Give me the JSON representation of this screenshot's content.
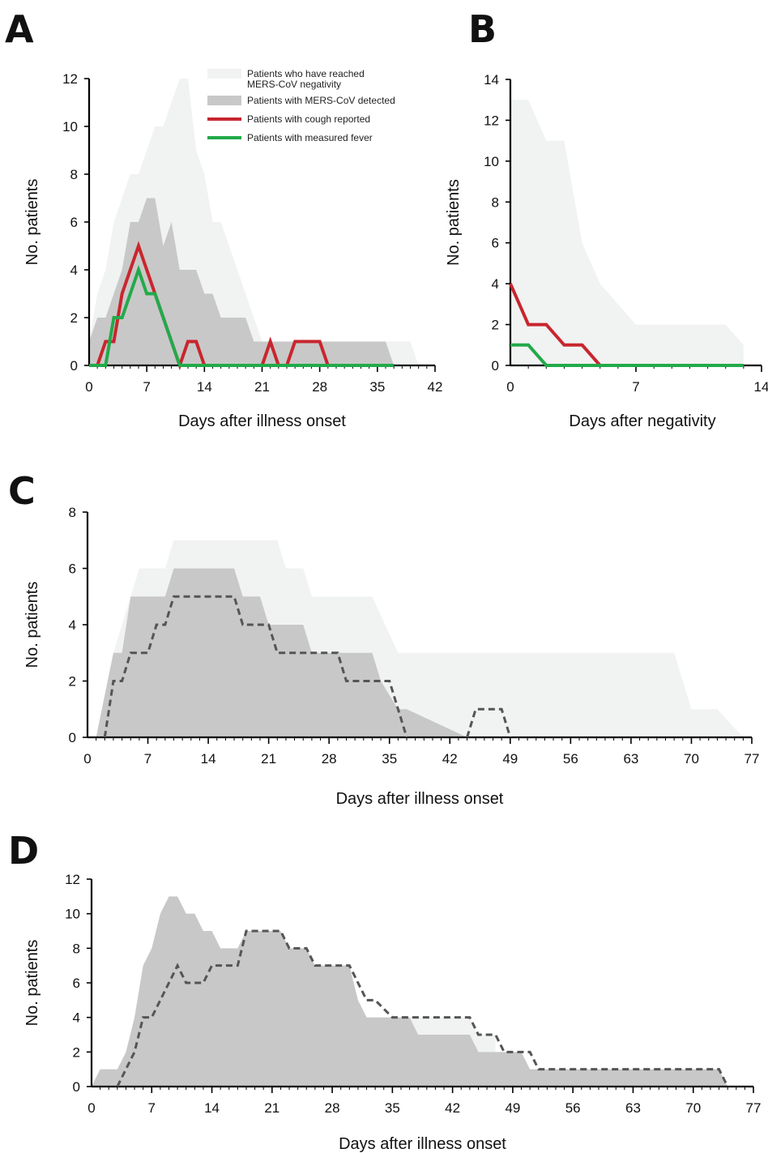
{
  "figure": {
    "panels": [
      "A",
      "B",
      "C",
      "D"
    ]
  },
  "legend": {
    "items": [
      {
        "kind": "area",
        "color": "#f1f2f2",
        "label_lines": [
          "Patients who have reached",
          "MERS-CoV negativity"
        ]
      },
      {
        "kind": "area",
        "color": "#c8c8c8",
        "label_lines": [
          "Patients with MERS-CoV detected"
        ]
      },
      {
        "kind": "line",
        "color": "#c8262e",
        "label_lines": [
          "Patients with cough reported"
        ]
      },
      {
        "kind": "line",
        "color": "#22aa4a",
        "label_lines": [
          "Patients with measured fever"
        ]
      }
    ]
  },
  "colors": {
    "negativity_area": "#f1f2f2",
    "detected_area": "#c8c8c8",
    "cough_line": "#c8262e",
    "fever_line": "#22aa4a",
    "dashed_line": "#555555",
    "axis": "#000000"
  },
  "chart_data": [
    {
      "panel": "A",
      "type": "area",
      "xlabel": "Days after illness onset",
      "ylabel": "No. patients",
      "xlim": [
        0,
        42
      ],
      "ylim": [
        0,
        12
      ],
      "xticks": [
        0,
        7,
        14,
        21,
        28,
        35,
        42
      ],
      "yticks": [
        0,
        2,
        4,
        6,
        8,
        10,
        12
      ],
      "series": [
        {
          "name": "Patients who have reached MERS-CoV negativity",
          "style": "area",
          "color": "#f1f2f2",
          "x": [
            0,
            1,
            2,
            3,
            4,
            5,
            6,
            7,
            8,
            9,
            10,
            11,
            12,
            13,
            14,
            15,
            16,
            17,
            18,
            19,
            20,
            21,
            22,
            23,
            24,
            25,
            26,
            27,
            28,
            29,
            30,
            31,
            32,
            33,
            34,
            35,
            36,
            37,
            38,
            39,
            40
          ],
          "y": [
            1,
            3,
            4,
            6,
            7,
            8,
            8,
            9,
            10,
            10,
            11,
            12,
            12,
            9,
            8,
            6,
            6,
            5,
            4,
            3,
            2,
            1,
            1,
            1,
            1,
            1,
            1,
            1,
            1,
            1,
            1,
            1,
            1,
            1,
            1,
            1,
            1,
            1,
            1,
            1,
            0
          ]
        },
        {
          "name": "Patients with MERS-CoV detected",
          "style": "area",
          "color": "#c8c8c8",
          "x": [
            0,
            1,
            2,
            3,
            4,
            5,
            6,
            7,
            8,
            9,
            10,
            11,
            12,
            13,
            14,
            15,
            16,
            17,
            18,
            19,
            20,
            21,
            22,
            23,
            24,
            25,
            26,
            27,
            28,
            29,
            30,
            31,
            32,
            33,
            34,
            35,
            36,
            37
          ],
          "y": [
            1,
            2,
            2,
            3,
            4,
            6,
            6,
            7,
            7,
            5,
            6,
            4,
            4,
            4,
            3,
            3,
            2,
            2,
            2,
            2,
            1,
            1,
            1,
            1,
            1,
            1,
            1,
            1,
            1,
            1,
            1,
            1,
            1,
            1,
            1,
            1,
            1,
            0
          ]
        },
        {
          "name": "Patients with cough reported",
          "style": "line",
          "color": "#c8262e",
          "x": [
            1,
            2,
            3,
            4,
            5,
            6,
            7,
            8,
            9,
            10,
            11,
            12,
            13,
            14,
            15,
            16,
            17,
            18,
            19,
            20,
            21,
            22,
            23,
            24,
            25,
            26,
            27,
            28,
            29
          ],
          "y": [
            0,
            1,
            1,
            3,
            4,
            5,
            4,
            3,
            2,
            1,
            0,
            1,
            1,
            0,
            0,
            0,
            0,
            0,
            0,
            0,
            0,
            1,
            0,
            0,
            1,
            1,
            1,
            1,
            0
          ]
        },
        {
          "name": "Patients with measured fever",
          "style": "line",
          "color": "#22aa4a",
          "x": [
            0,
            1,
            2,
            3,
            4,
            5,
            6,
            7,
            8,
            9,
            10,
            11,
            20,
            30,
            37
          ],
          "y": [
            0,
            0,
            0,
            2,
            2,
            3,
            4,
            3,
            3,
            2,
            1,
            0,
            0,
            0,
            0
          ]
        }
      ]
    },
    {
      "panel": "B",
      "type": "area",
      "xlabel": "Days after negativity",
      "ylabel": "No. patients",
      "xlim": [
        0,
        14
      ],
      "ylim": [
        0,
        14
      ],
      "xticks": [
        0,
        7,
        14
      ],
      "yticks": [
        0,
        2,
        4,
        6,
        8,
        10,
        12,
        14
      ],
      "series": [
        {
          "name": "Patients who have reached MERS-CoV negativity",
          "style": "area",
          "color": "#f1f2f2",
          "x": [
            0,
            1,
            2,
            3,
            4,
            5,
            6,
            7,
            8,
            9,
            10,
            11,
            12,
            13
          ],
          "y": [
            13,
            13,
            11,
            11,
            6,
            4,
            3,
            2,
            2,
            2,
            2,
            2,
            2,
            1
          ]
        },
        {
          "name": "Patients with cough reported",
          "style": "line",
          "color": "#c8262e",
          "x": [
            0,
            1,
            2,
            3,
            4,
            5,
            13
          ],
          "y": [
            4,
            2,
            2,
            1,
            1,
            0,
            0
          ]
        },
        {
          "name": "Patients with measured fever",
          "style": "line",
          "color": "#22aa4a",
          "x": [
            0,
            1,
            2,
            13
          ],
          "y": [
            1,
            1,
            0,
            0
          ]
        }
      ]
    },
    {
      "panel": "C",
      "type": "area",
      "xlabel": "Days after illness onset",
      "ylabel": "No. patients",
      "xlim": [
        0,
        77
      ],
      "ylim": [
        0,
        8
      ],
      "xticks": [
        0,
        7,
        14,
        21,
        28,
        35,
        42,
        49,
        56,
        63,
        70,
        77
      ],
      "yticks": [
        0,
        2,
        4,
        6,
        8
      ],
      "series": [
        {
          "style": "area",
          "color": "#f1f2f2",
          "x": [
            1,
            3,
            5,
            6,
            9,
            10,
            22,
            23,
            25,
            26,
            33,
            36,
            68,
            70,
            73,
            76
          ],
          "y": [
            0,
            3,
            5,
            6,
            6,
            7,
            7,
            6,
            6,
            5,
            5,
            3,
            3,
            1,
            1,
            0
          ]
        },
        {
          "style": "area",
          "color": "#c8c8c8",
          "x": [
            1,
            3,
            4,
            5,
            9,
            10,
            17,
            18,
            20,
            21,
            25,
            26,
            33,
            34,
            36,
            37,
            44
          ],
          "y": [
            0,
            3,
            3,
            5,
            5,
            6,
            6,
            5,
            5,
            4,
            4,
            3,
            3,
            2,
            1,
            1,
            0
          ]
        },
        {
          "style": "dashed",
          "color": "#555555",
          "x": [
            2,
            3,
            4,
            5,
            7,
            8,
            9,
            10,
            17,
            18,
            21,
            22,
            29,
            30,
            31,
            32,
            35,
            36,
            37
          ],
          "y": [
            0,
            2,
            2,
            3,
            3,
            4,
            4,
            5,
            5,
            4,
            4,
            3,
            3,
            2,
            2,
            2,
            2,
            1,
            0
          ]
        },
        {
          "style": "dashed",
          "color": "#555555",
          "x": [
            44,
            45,
            48,
            49
          ],
          "y": [
            0,
            1,
            1,
            0
          ]
        }
      ]
    },
    {
      "panel": "D",
      "type": "area",
      "xlabel": "Days after illness onset",
      "ylabel": "No. patients",
      "xlim": [
        0,
        77
      ],
      "ylim": [
        0,
        12
      ],
      "xticks": [
        0,
        7,
        14,
        21,
        28,
        35,
        42,
        49,
        56,
        63,
        70,
        77
      ],
      "yticks": [
        0,
        2,
        4,
        6,
        8,
        10,
        12
      ],
      "series": [
        {
          "style": "area",
          "color": "#f1f2f2",
          "x": [
            35,
            37,
            43,
            44,
            45,
            46,
            47
          ],
          "y": [
            4,
            4,
            4,
            4,
            3,
            3,
            3
          ]
        },
        {
          "style": "area",
          "color": "#c8c8c8",
          "x": [
            0,
            1,
            3,
            4,
            5,
            6,
            7,
            8,
            9,
            10,
            11,
            12,
            13,
            14,
            15,
            16,
            17,
            18,
            19,
            22,
            23,
            25,
            26,
            30,
            31,
            32,
            33,
            37,
            38,
            44,
            45,
            47,
            49,
            50,
            51,
            52,
            53,
            73,
            74
          ],
          "y": [
            0,
            1,
            1,
            2,
            4,
            7,
            8,
            10,
            11,
            11,
            10,
            10,
            9,
            9,
            8,
            8,
            8,
            9,
            9,
            9,
            8,
            8,
            7,
            7,
            5,
            4,
            4,
            4,
            3,
            3,
            2,
            2,
            2,
            2,
            1,
            1,
            1,
            1,
            0
          ]
        },
        {
          "style": "dashed",
          "color": "#555555",
          "x": [
            3,
            4,
            5,
            6,
            7,
            8,
            9,
            10,
            11,
            13,
            14,
            17,
            18,
            20,
            22,
            23,
            25,
            26,
            30,
            31,
            32,
            33,
            35,
            44,
            45,
            47,
            48,
            50,
            51,
            52,
            70,
            71,
            72,
            73,
            74
          ],
          "y": [
            0,
            1,
            2,
            4,
            4,
            5,
            6,
            7,
            6,
            6,
            7,
            7,
            9,
            9,
            9,
            8,
            8,
            7,
            7,
            6,
            5,
            5,
            4,
            4,
            3,
            3,
            2,
            2,
            2,
            1,
            1,
            1,
            1,
            1,
            0
          ]
        }
      ]
    }
  ]
}
